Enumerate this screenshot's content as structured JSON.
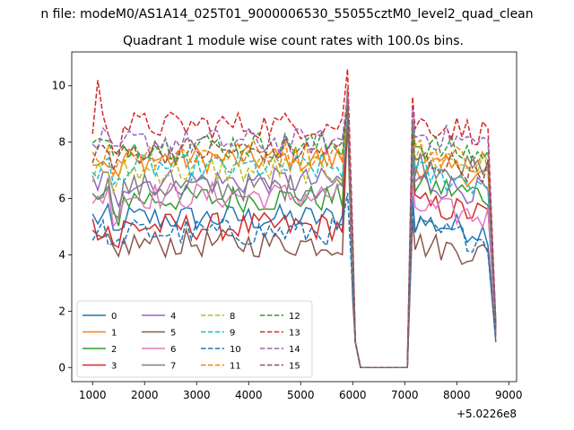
{
  "figure": {
    "suptitle": "n file: modeM0/AS1A14_025T01_9000006530_55055cztM0_level2_quad_clean"
  },
  "chart_data": {
    "type": "line",
    "title": "Quadrant 1 module wise count rates with 100.0s bins.",
    "xlabel": "",
    "ylabel": "",
    "x_offset_label": "+5.0226e8",
    "xlim": [
      600,
      9150
    ],
    "ylim": [
      -0.5,
      11.2
    ],
    "xticks": [
      1000,
      2000,
      3000,
      4000,
      5000,
      6000,
      7000,
      8000,
      9000
    ],
    "xtick_labels": [
      "1000",
      "2000",
      "3000",
      "4000",
      "5000",
      "6000",
      "7000",
      "8000",
      "9000"
    ],
    "yticks": [
      0,
      2,
      4,
      6,
      8,
      10
    ],
    "ytick_labels": [
      "0",
      "2",
      "4",
      "6",
      "8",
      "10"
    ],
    "grid": false,
    "legend_placement": "lower-left",
    "legend_columns": 4,
    "segments": [
      {
        "x_start": 1000,
        "x_end": 5900,
        "step": 100
      },
      {
        "x_start": 5900,
        "x_end": 7100,
        "step": 100
      },
      {
        "x_start": 7100,
        "x_end": 8750,
        "step": 100
      }
    ],
    "series": [
      {
        "name": "0",
        "color": "#1f77b4",
        "dash": "solid",
        "level": 5.3,
        "tail": 5.2,
        "peak": 9.8,
        "end": 1.1
      },
      {
        "name": "1",
        "color": "#ff7f0e",
        "dash": "solid",
        "level": 7.4,
        "tail": 7.2,
        "peak": 9.4,
        "end": 1.4
      },
      {
        "name": "2",
        "color": "#2ca02c",
        "dash": "solid",
        "level": 6.0,
        "tail": 6.5,
        "peak": 9.6,
        "end": 1.2
      },
      {
        "name": "3",
        "color": "#d62728",
        "dash": "solid",
        "level": 5.0,
        "tail": 5.8,
        "peak": 9.9,
        "end": 1.2
      },
      {
        "name": "4",
        "color": "#9467bd",
        "dash": "solid",
        "level": 6.6,
        "tail": 6.6,
        "peak": 9.5,
        "end": 1.3
      },
      {
        "name": "5",
        "color": "#8c564b",
        "dash": "solid",
        "level": 4.4,
        "tail": 4.4,
        "peak": 8.8,
        "end": 0.9
      },
      {
        "name": "6",
        "color": "#e377c2",
        "dash": "solid",
        "level": 6.1,
        "tail": 5.7,
        "peak": 9.3,
        "end": 1.1
      },
      {
        "name": "7",
        "color": "#7f7f7f",
        "dash": "solid",
        "level": 6.4,
        "tail": 7.3,
        "peak": 9.9,
        "end": 1.3
      },
      {
        "name": "8",
        "color": "#bcbd22",
        "dash": "dashed",
        "level": 7.0,
        "tail": 7.5,
        "peak": 9.7,
        "end": 1.5
      },
      {
        "name": "9",
        "color": "#17becf",
        "dash": "dashed",
        "level": 7.1,
        "tail": 6.9,
        "peak": 9.2,
        "end": 1.4
      },
      {
        "name": "10",
        "color": "#1f77b4",
        "dash": "dashed",
        "level": 4.8,
        "tail": 4.9,
        "peak": 6.2,
        "end": 1.0
      },
      {
        "name": "11",
        "color": "#ff7f0e",
        "dash": "dashed",
        "level": 7.6,
        "tail": 7.7,
        "peak": 9.6,
        "end": 1.5
      },
      {
        "name": "12",
        "color": "#2ca02c",
        "dash": "dashed",
        "level": 7.9,
        "tail": 7.9,
        "peak": 9.5,
        "end": 1.5
      },
      {
        "name": "13",
        "color": "#d62728",
        "dash": "dashed",
        "level": 8.6,
        "tail": 8.7,
        "peak": 10.6,
        "end": 1.6
      },
      {
        "name": "14",
        "color": "#9467bd",
        "dash": "dashed",
        "level": 8.0,
        "tail": 8.3,
        "peak": 9.7,
        "end": 1.6
      },
      {
        "name": "15",
        "color": "#8c564b",
        "dash": "dashed",
        "level": 7.7,
        "tail": 7.4,
        "peak": 9.2,
        "end": 1.4
      }
    ]
  }
}
